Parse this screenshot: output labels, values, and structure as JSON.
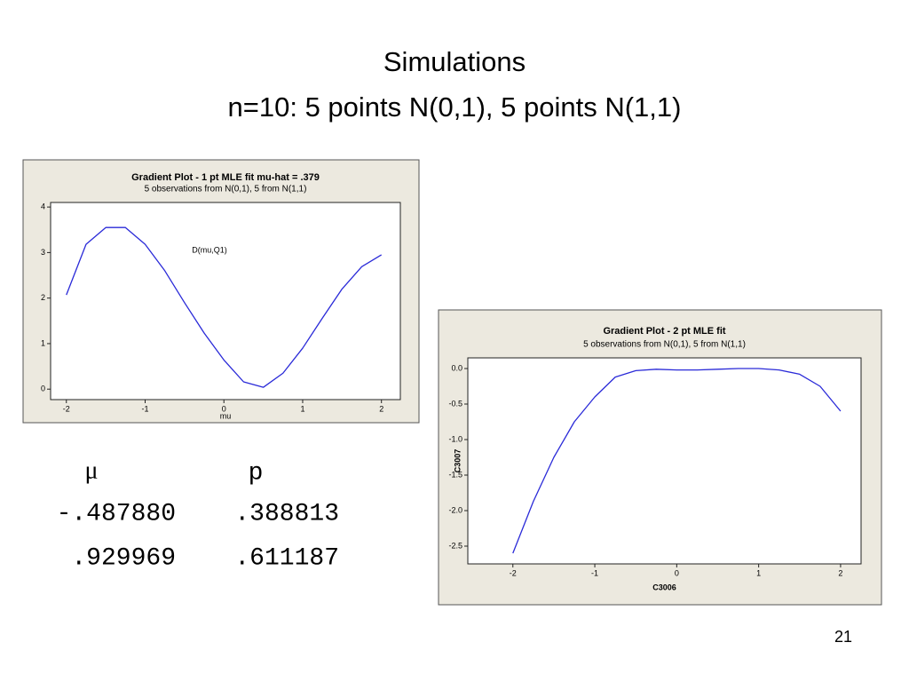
{
  "title": [
    "Simulations",
    "n=10:  5 points N(0,1), 5 points N(1,1)"
  ],
  "chart_data": [
    {
      "type": "line",
      "title": "Gradient Plot - 1 pt MLE fit mu-hat = .379",
      "subtitle": "5 observations from N(0,1), 5 from N(1,1)",
      "annotation": "D(mu,Q1)",
      "x_label": "mu",
      "color": "#2a2ad8",
      "x": [
        -2,
        -1.75,
        -1.5,
        -1.25,
        -1,
        -0.75,
        -0.5,
        -0.25,
        0,
        0.25,
        0.5,
        0.75,
        1,
        1.25,
        1.5,
        1.75,
        2
      ],
      "values": [
        2.07,
        3.18,
        3.55,
        3.55,
        3.18,
        2.6,
        1.9,
        1.23,
        0.64,
        0.16,
        0.04,
        0.35,
        0.9,
        1.56,
        2.2,
        2.69,
        2.95
      ],
      "xlim": [
        -2.2,
        2.24
      ],
      "ylim": [
        -0.23,
        4.1
      ],
      "xticks": [
        -2,
        -1,
        0,
        1,
        2
      ],
      "yticks": [
        0,
        1,
        2,
        3,
        4
      ]
    },
    {
      "type": "line",
      "title": "Gradient Plot - 2 pt MLE fit",
      "subtitle": "5 observations from N(0,1), 5 from N(1,1)",
      "x_label": "C3006",
      "y_label": "C3007",
      "color": "#2a2ad8",
      "x": [
        -2,
        -1.75,
        -1.5,
        -1.25,
        -1,
        -0.75,
        -0.5,
        -0.25,
        0,
        0.25,
        0.5,
        0.75,
        1,
        1.25,
        1.5,
        1.75,
        2
      ],
      "values": [
        -2.6,
        -1.87,
        -1.25,
        -0.75,
        -0.4,
        -0.12,
        -0.03,
        -0.01,
        -0.02,
        -0.02,
        -0.01,
        0,
        0,
        -0.02,
        -0.08,
        -0.25,
        -0.6
      ],
      "xlim": [
        -2.55,
        2.25
      ],
      "ylim": [
        -2.75,
        0.15
      ],
      "xticks": [
        -2,
        -1,
        0,
        1,
        2
      ],
      "yticks": [
        {
          "value": 0,
          "label": "0.0"
        },
        -0.5,
        {
          "value": -1,
          "label": "-1.0"
        },
        -1.5,
        {
          "value": -2,
          "label": "-2.0"
        },
        -2.5
      ]
    }
  ],
  "table": {
    "header": [
      "μ",
      "p"
    ],
    "rows": [
      [
        "-.487880",
        ".388813"
      ],
      [
        ".929969",
        ".611187"
      ]
    ]
  },
  "page_number": "21"
}
